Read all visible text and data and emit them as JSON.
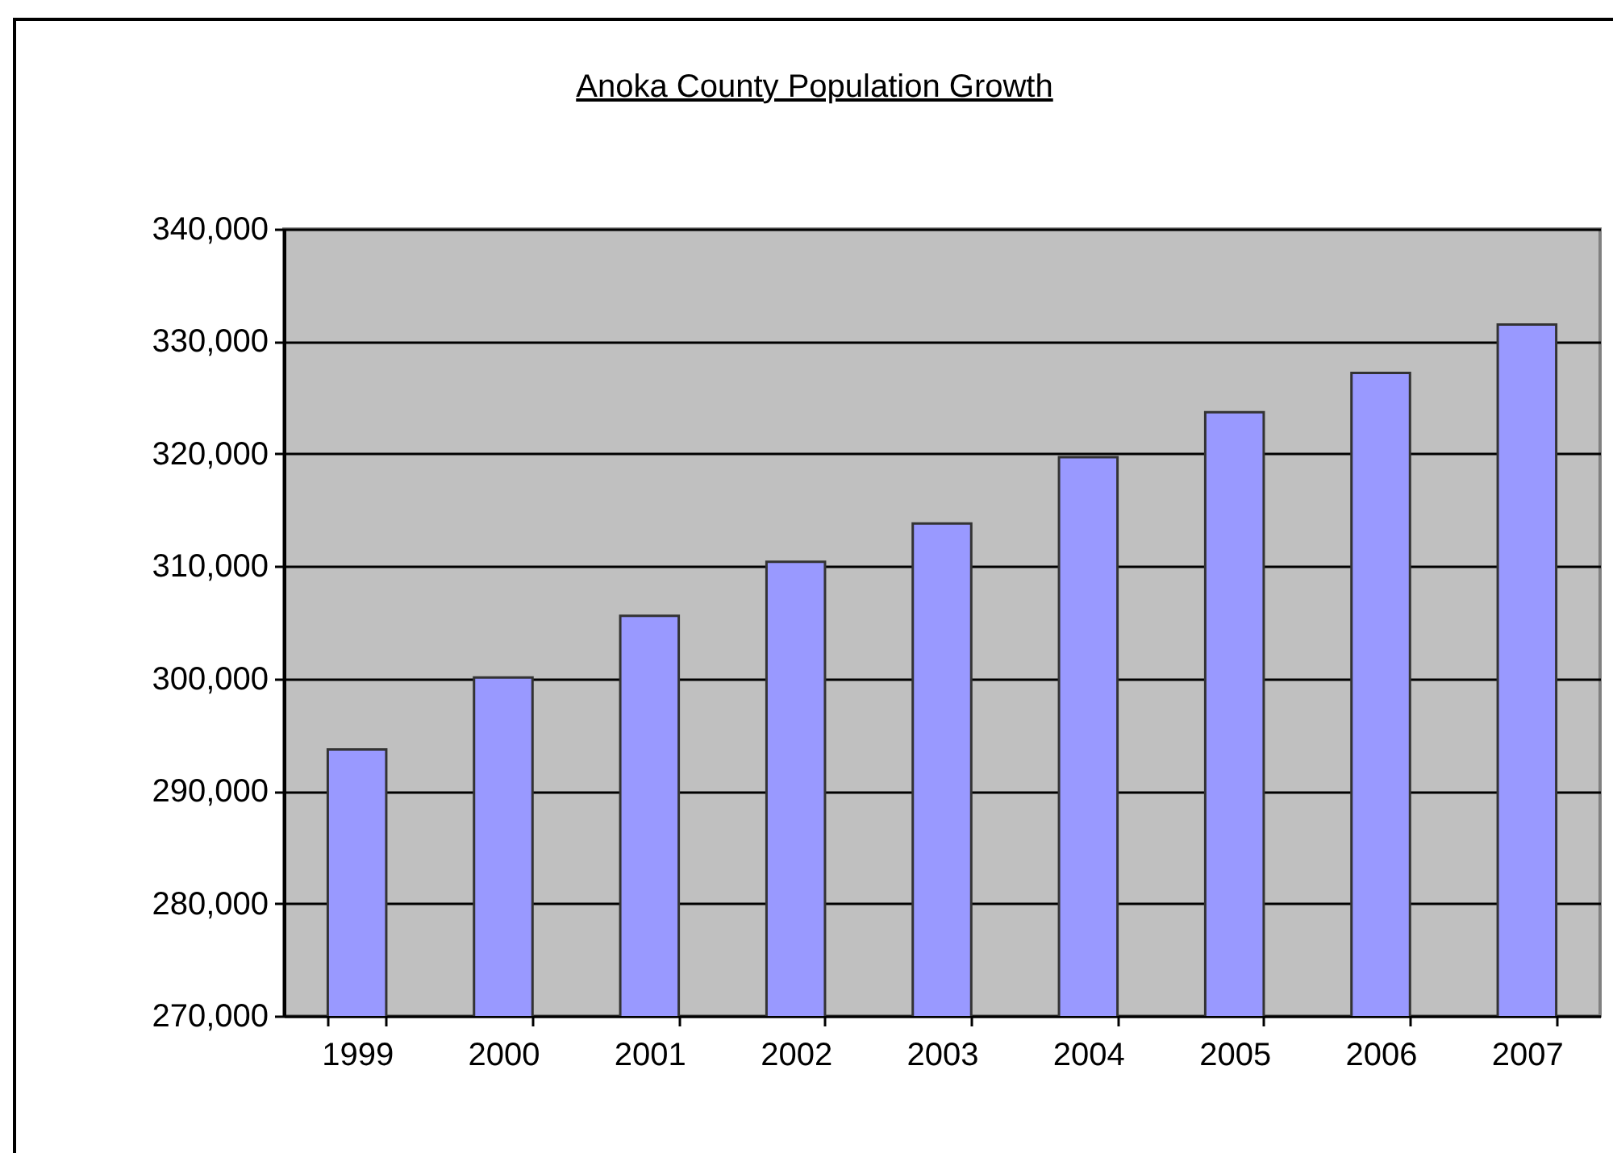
{
  "chart_data": {
    "type": "bar",
    "title": "Anoka County Population Growth",
    "categories": [
      "1999",
      "2000",
      "2001",
      "2002",
      "2003",
      "2004",
      "2005",
      "2006",
      "2007"
    ],
    "values": [
      293700,
      300100,
      305600,
      310400,
      313800,
      319700,
      323700,
      327200,
      331500
    ],
    "color": "#9999ff",
    "ylim": [
      270000,
      340000
    ],
    "yticks": [
      {
        "value": 270000,
        "label": "270,000"
      },
      {
        "value": 280000,
        "label": "280,000"
      },
      {
        "value": 290000,
        "label": "290,000"
      },
      {
        "value": 300000,
        "label": "300,000"
      },
      {
        "value": 310000,
        "label": "310,000"
      },
      {
        "value": 320000,
        "label": "320,000"
      },
      {
        "value": 330000,
        "label": "330,000"
      },
      {
        "value": 340000,
        "label": "340,000"
      }
    ],
    "grid": "y"
  }
}
